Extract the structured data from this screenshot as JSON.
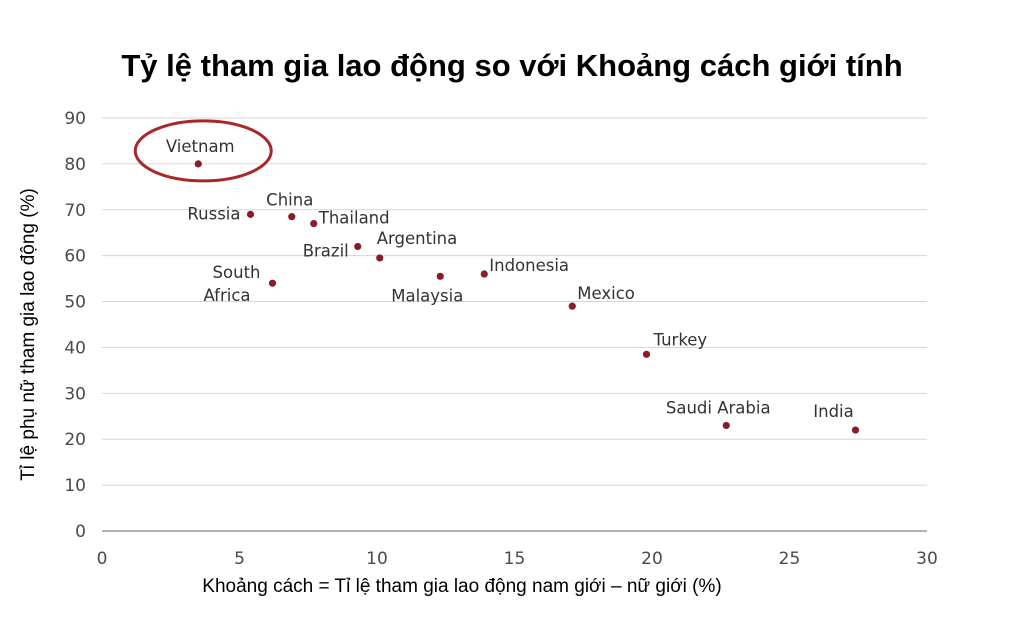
{
  "chart_data": {
    "type": "scatter",
    "title": "Tỷ lệ tham gia lao động so với Khoảng cách giới tính",
    "xlabel": "Khoảng cách = Tỉ lệ tham gia lao động nam giới – nữ giới (%)",
    "ylabel": "Tỉ lệ phụ nữ tham gia lao động (%)",
    "xlim": [
      0,
      30
    ],
    "ylim": [
      0,
      90
    ],
    "xticks": [
      0,
      5,
      10,
      15,
      20,
      25,
      30
    ],
    "yticks": [
      0,
      10,
      20,
      30,
      40,
      50,
      60,
      70,
      80,
      90
    ],
    "grid": "horizontal",
    "point_color": "#8b1a2b",
    "highlight_color": "#a82828",
    "highlighted": "Vietnam",
    "points": [
      {
        "label": "Vietnam",
        "x": 3.5,
        "y": 80
      },
      {
        "label": "Russia",
        "x": 5.4,
        "y": 69
      },
      {
        "label": "China",
        "x": 6.9,
        "y": 68.5
      },
      {
        "label": "Thailand",
        "x": 7.7,
        "y": 67
      },
      {
        "label": "Brazil",
        "x": 9.3,
        "y": 62
      },
      {
        "label": "Argentina",
        "x": 10.1,
        "y": 59.5
      },
      {
        "label": "South Africa",
        "x": 6.2,
        "y": 54
      },
      {
        "label": "Malaysia",
        "x": 12.3,
        "y": 55.5
      },
      {
        "label": "Indonesia",
        "x": 13.9,
        "y": 56
      },
      {
        "label": "Mexico",
        "x": 17.1,
        "y": 49
      },
      {
        "label": "Turkey",
        "x": 19.8,
        "y": 38.5
      },
      {
        "label": "Saudi Arabia",
        "x": 22.7,
        "y": 23
      },
      {
        "label": "India",
        "x": 27.4,
        "y": 22
      }
    ]
  }
}
